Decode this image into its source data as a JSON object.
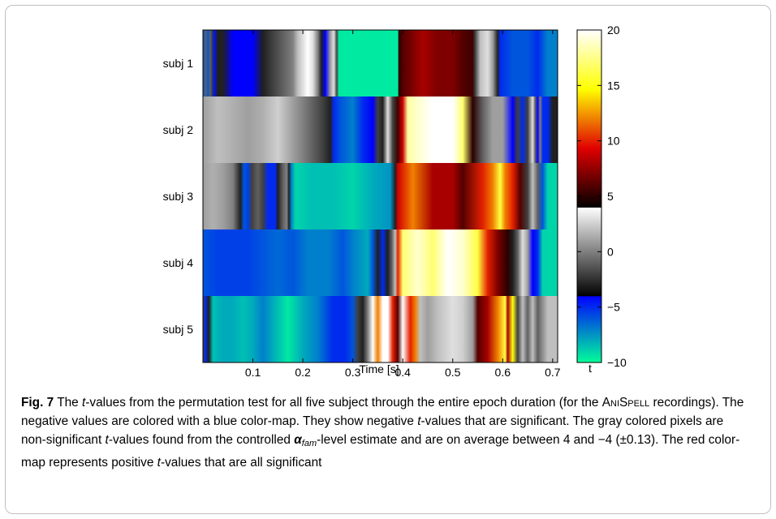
{
  "chart_data": {
    "type": "heatmap",
    "title": "",
    "xlabel": "Time [s]",
    "ylabel": "",
    "xlim": [
      0,
      0.71
    ],
    "x_ticks": [
      0.1,
      0.2,
      0.3,
      0.4,
      0.5,
      0.6,
      0.7
    ],
    "x_tick_labels": [
      "0.1",
      "0.2",
      "0.3",
      "0.4",
      "0.5",
      "0.6",
      "0.7"
    ],
    "rows": [
      "subj 1",
      "subj 2",
      "subj 3",
      "subj 4",
      "subj 5"
    ],
    "segments": [
      [
        [
          0.0,
          -6
        ],
        [
          0.006,
          -1
        ],
        [
          0.01,
          -6
        ],
        [
          0.015,
          -1
        ],
        [
          0.018,
          -2
        ],
        [
          0.022,
          -4.5
        ],
        [
          0.03,
          -3
        ],
        [
          0.04,
          -3
        ],
        [
          0.06,
          -4
        ],
        [
          0.08,
          -4
        ],
        [
          0.1,
          -4
        ],
        [
          0.12,
          -3
        ],
        [
          0.14,
          -2
        ],
        [
          0.16,
          -1
        ],
        [
          0.18,
          0
        ],
        [
          0.19,
          2
        ],
        [
          0.21,
          4
        ],
        [
          0.22,
          3
        ],
        [
          0.23,
          0
        ],
        [
          0.237,
          -3
        ],
        [
          0.245,
          -4
        ],
        [
          0.255,
          1
        ],
        [
          0.262,
          3
        ],
        [
          0.268,
          -2
        ],
        [
          0.272,
          -9.5
        ],
        [
          0.325,
          -9.5
        ],
        [
          0.39,
          -9.5
        ],
        [
          0.392,
          5
        ],
        [
          0.4,
          6
        ],
        [
          0.44,
          8
        ],
        [
          0.47,
          7
        ],
        [
          0.5,
          7
        ],
        [
          0.52,
          6
        ],
        [
          0.54,
          5.5
        ],
        [
          0.545,
          -2
        ],
        [
          0.555,
          2
        ],
        [
          0.57,
          3
        ],
        [
          0.58,
          1
        ],
        [
          0.59,
          -3
        ],
        [
          0.595,
          -5
        ],
        [
          0.62,
          -6
        ],
        [
          0.65,
          -6
        ],
        [
          0.67,
          -5
        ],
        [
          0.69,
          -7
        ],
        [
          0.71,
          -7
        ]
      ],
      [
        [
          0.0,
          1
        ],
        [
          0.03,
          2
        ],
        [
          0.06,
          1.5
        ],
        [
          0.09,
          1
        ],
        [
          0.12,
          1.5
        ],
        [
          0.15,
          2.5
        ],
        [
          0.18,
          1
        ],
        [
          0.2,
          0
        ],
        [
          0.22,
          -1
        ],
        [
          0.24,
          -2
        ],
        [
          0.255,
          -3
        ],
        [
          0.262,
          -5
        ],
        [
          0.275,
          -6
        ],
        [
          0.3,
          -7
        ],
        [
          0.32,
          -5
        ],
        [
          0.34,
          -4
        ],
        [
          0.35,
          -2
        ],
        [
          0.36,
          -3
        ],
        [
          0.37,
          3
        ],
        [
          0.38,
          -2
        ],
        [
          0.39,
          5.5
        ],
        [
          0.4,
          9
        ],
        [
          0.41,
          18
        ],
        [
          0.43,
          19
        ],
        [
          0.46,
          20
        ],
        [
          0.5,
          20
        ],
        [
          0.52,
          17
        ],
        [
          0.54,
          5
        ],
        [
          0.56,
          -1
        ],
        [
          0.58,
          1
        ],
        [
          0.6,
          1
        ],
        [
          0.62,
          -4
        ],
        [
          0.63,
          -2
        ],
        [
          0.64,
          -5
        ],
        [
          0.65,
          -2
        ],
        [
          0.66,
          3
        ],
        [
          0.665,
          -1
        ],
        [
          0.67,
          -4
        ],
        [
          0.675,
          0
        ],
        [
          0.68,
          -5
        ],
        [
          0.69,
          -5
        ],
        [
          0.7,
          -3
        ],
        [
          0.71,
          -3
        ]
      ],
      [
        [
          0.0,
          1
        ],
        [
          0.02,
          1.5
        ],
        [
          0.04,
          1
        ],
        [
          0.06,
          0
        ],
        [
          0.075,
          -3
        ],
        [
          0.082,
          -6
        ],
        [
          0.09,
          -5.5
        ],
        [
          0.098,
          -2
        ],
        [
          0.11,
          -1
        ],
        [
          0.12,
          -2
        ],
        [
          0.13,
          -5
        ],
        [
          0.145,
          -5
        ],
        [
          0.15,
          -3
        ],
        [
          0.16,
          -1
        ],
        [
          0.168,
          0
        ],
        [
          0.172,
          -3
        ],
        [
          0.177,
          -7
        ],
        [
          0.185,
          -9
        ],
        [
          0.22,
          -8.5
        ],
        [
          0.26,
          -8.5
        ],
        [
          0.3,
          -9
        ],
        [
          0.34,
          -8
        ],
        [
          0.375,
          -7.5
        ],
        [
          0.385,
          -3
        ],
        [
          0.39,
          9
        ],
        [
          0.42,
          12
        ],
        [
          0.46,
          8
        ],
        [
          0.5,
          8
        ],
        [
          0.52,
          6
        ],
        [
          0.56,
          10
        ],
        [
          0.58,
          12
        ],
        [
          0.595,
          16
        ],
        [
          0.605,
          12
        ],
        [
          0.62,
          10
        ],
        [
          0.635,
          6
        ],
        [
          0.65,
          -2
        ],
        [
          0.66,
          2
        ],
        [
          0.67,
          -1
        ],
        [
          0.68,
          -6
        ],
        [
          0.69,
          -9
        ],
        [
          0.71,
          -9
        ]
      ],
      [
        [
          0.0,
          -6
        ],
        [
          0.03,
          -5.5
        ],
        [
          0.06,
          -5.5
        ],
        [
          0.09,
          -5.5
        ],
        [
          0.12,
          -6
        ],
        [
          0.15,
          -6.5
        ],
        [
          0.18,
          -6
        ],
        [
          0.21,
          -7
        ],
        [
          0.25,
          -7
        ],
        [
          0.28,
          -6
        ],
        [
          0.3,
          -7
        ],
        [
          0.33,
          -8
        ],
        [
          0.34,
          -6
        ],
        [
          0.35,
          -3
        ],
        [
          0.36,
          -5
        ],
        [
          0.37,
          -3
        ],
        [
          0.378,
          -1
        ],
        [
          0.385,
          2
        ],
        [
          0.39,
          10
        ],
        [
          0.4,
          17
        ],
        [
          0.43,
          19
        ],
        [
          0.46,
          17
        ],
        [
          0.49,
          20
        ],
        [
          0.52,
          19
        ],
        [
          0.55,
          16
        ],
        [
          0.57,
          10
        ],
        [
          0.59,
          7
        ],
        [
          0.61,
          5
        ],
        [
          0.62,
          -3
        ],
        [
          0.63,
          -1
        ],
        [
          0.64,
          3
        ],
        [
          0.65,
          1
        ],
        [
          0.66,
          -4
        ],
        [
          0.67,
          -5
        ],
        [
          0.68,
          -9
        ],
        [
          0.71,
          -9
        ]
      ],
      [
        [
          0.0,
          -2
        ],
        [
          0.005,
          -5
        ],
        [
          0.012,
          -3
        ],
        [
          0.02,
          -8.5
        ],
        [
          0.04,
          -8
        ],
        [
          0.06,
          -8
        ],
        [
          0.08,
          -8.5
        ],
        [
          0.1,
          -8
        ],
        [
          0.12,
          -7
        ],
        [
          0.14,
          -8
        ],
        [
          0.17,
          -9.5
        ],
        [
          0.2,
          -8
        ],
        [
          0.23,
          -7
        ],
        [
          0.26,
          -5
        ],
        [
          0.285,
          -5
        ],
        [
          0.3,
          -6
        ],
        [
          0.31,
          -2
        ],
        [
          0.32,
          -3
        ],
        [
          0.33,
          0
        ],
        [
          0.34,
          4
        ],
        [
          0.35,
          12
        ],
        [
          0.36,
          20
        ],
        [
          0.37,
          20
        ],
        [
          0.38,
          10
        ],
        [
          0.39,
          6
        ],
        [
          0.4,
          4
        ],
        [
          0.415,
          10
        ],
        [
          0.425,
          12
        ],
        [
          0.435,
          2
        ],
        [
          0.45,
          1
        ],
        [
          0.47,
          2
        ],
        [
          0.5,
          3
        ],
        [
          0.52,
          2.5
        ],
        [
          0.54,
          1
        ],
        [
          0.55,
          6
        ],
        [
          0.57,
          8
        ],
        [
          0.59,
          12
        ],
        [
          0.605,
          16
        ],
        [
          0.61,
          8
        ],
        [
          0.62,
          15
        ],
        [
          0.63,
          -2
        ],
        [
          0.64,
          2
        ],
        [
          0.65,
          -1
        ],
        [
          0.66,
          2
        ],
        [
          0.67,
          -1
        ],
        [
          0.69,
          2
        ],
        [
          0.71,
          2
        ]
      ]
    ],
    "colorbar": {
      "label": "t",
      "lim": [
        -10,
        20
      ],
      "ticks": [
        -10,
        -5,
        0,
        5,
        10,
        15,
        20
      ],
      "tick_labels": [
        "−10",
        "−5",
        "0",
        "5",
        "10",
        "15",
        "20"
      ],
      "segments": [
        {
          "from": -10,
          "to": -4,
          "colors": [
            "#00ff99",
            "#0000ff"
          ],
          "name": "negative blue map"
        },
        {
          "from": -4,
          "to": 4,
          "colors": [
            "#000000",
            "#ffffff"
          ],
          "name": "non-significant gray map"
        },
        {
          "from": 4,
          "to": 20,
          "colors": [
            "#000000",
            "#e00000",
            "#ffff00",
            "#ffffff"
          ],
          "name": "positive hot map"
        }
      ]
    }
  },
  "caption": {
    "fig_label": "Fig. 7",
    "part1": " The ",
    "t1": "t",
    "part2": "-values from the permutation test for all five subject through the entire epoch duration (for the ",
    "anispell": "AniSpell",
    "part3": " recordings). The negative values are colored with a blue color-map. They show negative ",
    "t2": "t",
    "part4": "-values that are significant. The gray colored pixels are non-significant ",
    "t3": "t",
    "part5": "-values found from the controlled ",
    "alpha": "α",
    "fam": "fam",
    "part6": "-level estimate and are on average between 4 and −4 (±0.13). The red color-map represents positive ",
    "t4": "t",
    "part7": "-values that are all significant"
  }
}
